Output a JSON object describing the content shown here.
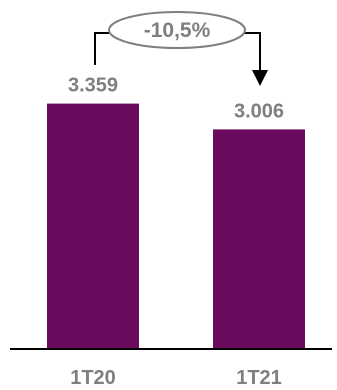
{
  "chart_data": {
    "type": "bar",
    "categories": [
      "1T20",
      "1T21"
    ],
    "values": [
      3359,
      3006
    ],
    "value_labels": [
      "3.359",
      "3.006"
    ],
    "title": "",
    "xlabel": "",
    "ylabel": "",
    "ylim": [
      0,
      3600
    ],
    "grid": false,
    "legend": "none",
    "bar_color": "#6b0b5e",
    "change_label": "-10,5%"
  }
}
